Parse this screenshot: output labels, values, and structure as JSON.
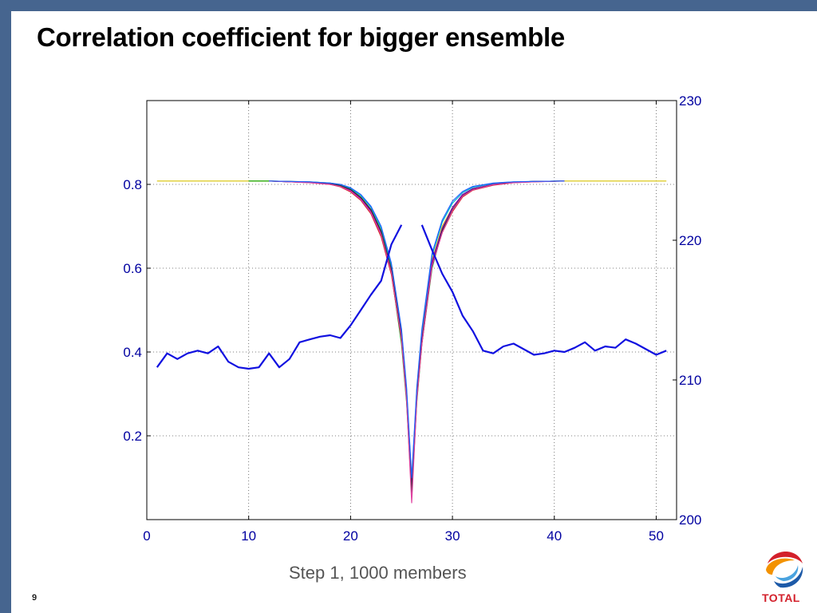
{
  "slide": {
    "title": "Correlation coefficient for bigger ensemble",
    "caption": "Step 1, 1000 members",
    "page_number": "9",
    "logo_text": "TOTAL",
    "frame_color": "#46658f"
  },
  "chart_data": {
    "type": "line",
    "title": "",
    "xlabel": "",
    "ylabel_left": "",
    "ylabel_right": "",
    "grid": true,
    "xlim": [
      0,
      52
    ],
    "xticks": [
      0,
      10,
      20,
      30,
      40,
      50
    ],
    "ylim_left": [
      0,
      1
    ],
    "yticks_left": [
      0.2,
      0.4,
      0.6,
      0.8
    ],
    "ylim_right": [
      200,
      230
    ],
    "yticks_right": [
      200,
      210,
      220,
      230
    ],
    "correlation_curves": {
      "axis": "left",
      "colors": [
        "#d8c400",
        "#00a000",
        "#d02020",
        "#00b8c8",
        "#8000c0",
        "#303030",
        "#e040a0",
        "#2060ff",
        "#808000",
        "#40a040"
      ],
      "series": [
        {
          "x": [
            1,
            5,
            10,
            12,
            14,
            16,
            18,
            19,
            20,
            21,
            22,
            23,
            24,
            25,
            25.5,
            26,
            26.5,
            27,
            28,
            29,
            30,
            31,
            32,
            34,
            36,
            38,
            41,
            51
          ],
          "values": [
            0.808,
            0.808,
            0.808,
            0.808,
            0.807,
            0.806,
            0.803,
            0.798,
            0.788,
            0.77,
            0.74,
            0.69,
            0.6,
            0.44,
            0.3,
            0.08,
            0.3,
            0.44,
            0.62,
            0.7,
            0.745,
            0.775,
            0.79,
            0.8,
            0.805,
            0.807,
            0.808,
            0.808
          ]
        },
        {
          "x": [
            10,
            12,
            14,
            16,
            18,
            19,
            20,
            21,
            22,
            23,
            24,
            25,
            25.5,
            26,
            26.5,
            27,
            28,
            29,
            30,
            31,
            32,
            34,
            36,
            38,
            41
          ],
          "values": [
            0.808,
            0.808,
            0.806,
            0.805,
            0.802,
            0.797,
            0.785,
            0.765,
            0.735,
            0.68,
            0.59,
            0.42,
            0.28,
            0.06,
            0.28,
            0.42,
            0.6,
            0.69,
            0.74,
            0.772,
            0.788,
            0.8,
            0.805,
            0.807,
            0.808
          ]
        },
        {
          "x": [
            12,
            14,
            16,
            18,
            19,
            20,
            21,
            22,
            23,
            24,
            25,
            25.5,
            26,
            26.5,
            27,
            28,
            29,
            30,
            31,
            32,
            34,
            36,
            38,
            41
          ],
          "values": [
            0.808,
            0.806,
            0.804,
            0.8,
            0.794,
            0.782,
            0.762,
            0.73,
            0.675,
            0.585,
            0.43,
            0.29,
            0.07,
            0.29,
            0.42,
            0.61,
            0.685,
            0.735,
            0.77,
            0.786,
            0.798,
            0.804,
            0.806,
            0.808
          ]
        },
        {
          "x": [
            12,
            14,
            16,
            18,
            19,
            20,
            21,
            22,
            23,
            24,
            25,
            25.5,
            26,
            26.5,
            27,
            28,
            29,
            30,
            31,
            32,
            34,
            36,
            38,
            41
          ],
          "values": [
            0.808,
            0.807,
            0.806,
            0.803,
            0.799,
            0.79,
            0.773,
            0.745,
            0.695,
            0.605,
            0.45,
            0.31,
            0.09,
            0.31,
            0.45,
            0.63,
            0.71,
            0.755,
            0.78,
            0.793,
            0.802,
            0.806,
            0.807,
            0.808
          ]
        },
        {
          "x": [
            12,
            14,
            16,
            18,
            19,
            20,
            21,
            22,
            23,
            24,
            25,
            25.5,
            26,
            26.5,
            27,
            28,
            29,
            30,
            31,
            32,
            34,
            36,
            38,
            41
          ],
          "values": [
            0.808,
            0.806,
            0.805,
            0.801,
            0.796,
            0.786,
            0.767,
            0.737,
            0.685,
            0.595,
            0.44,
            0.3,
            0.075,
            0.3,
            0.43,
            0.615,
            0.695,
            0.745,
            0.776,
            0.79,
            0.8,
            0.805,
            0.807,
            0.808
          ]
        },
        {
          "x": [
            12,
            14,
            16,
            18,
            19,
            20,
            21,
            22,
            23,
            24,
            25,
            25.5,
            26,
            26.5,
            27,
            28,
            29,
            30,
            31,
            32,
            34,
            36,
            38,
            41
          ],
          "values": [
            0.808,
            0.807,
            0.805,
            0.802,
            0.797,
            0.788,
            0.769,
            0.74,
            0.688,
            0.598,
            0.435,
            0.295,
            0.065,
            0.295,
            0.425,
            0.605,
            0.69,
            0.74,
            0.773,
            0.788,
            0.799,
            0.805,
            0.807,
            0.808
          ]
        },
        {
          "x": [
            12,
            14,
            16,
            18,
            19,
            20,
            21,
            22,
            23,
            24,
            25,
            25.5,
            26,
            26.5,
            27,
            28,
            29,
            30,
            31,
            32,
            34,
            36,
            38,
            41
          ],
          "values": [
            0.808,
            0.806,
            0.804,
            0.8,
            0.795,
            0.784,
            0.764,
            0.733,
            0.68,
            0.59,
            0.43,
            0.285,
            0.04,
            0.285,
            0.42,
            0.605,
            0.685,
            0.738,
            0.772,
            0.787,
            0.799,
            0.804,
            0.806,
            0.808
          ]
        },
        {
          "x": [
            12,
            14,
            16,
            18,
            19,
            20,
            21,
            22,
            23,
            24,
            25,
            25.5,
            26,
            26.5,
            27,
            28,
            29,
            30,
            31,
            32,
            34,
            36,
            38,
            41
          ],
          "values": [
            0.808,
            0.807,
            0.806,
            0.803,
            0.8,
            0.792,
            0.776,
            0.748,
            0.7,
            0.612,
            0.455,
            0.315,
            0.1,
            0.315,
            0.455,
            0.635,
            0.715,
            0.76,
            0.783,
            0.795,
            0.803,
            0.806,
            0.807,
            0.808
          ]
        }
      ]
    },
    "mean_curve": {
      "axis": "right",
      "color": "#1010e0",
      "segments": [
        {
          "x": [
            1,
            2,
            3,
            4,
            5,
            6,
            7,
            8,
            9,
            10,
            11,
            12,
            13,
            14,
            15,
            16,
            17,
            18,
            19,
            20,
            21,
            22,
            23,
            24,
            25
          ],
          "values": [
            210.9,
            211.9,
            211.5,
            211.9,
            212.1,
            211.9,
            212.4,
            211.3,
            210.9,
            210.8,
            210.9,
            211.9,
            210.9,
            211.5,
            212.7,
            212.9,
            213.1,
            213.2,
            213.0,
            213.9,
            215.0,
            216.1,
            217.1,
            219.7,
            221.1
          ]
        },
        {
          "x": [
            27,
            28,
            29,
            30,
            31,
            32,
            33,
            34,
            35,
            36,
            37,
            38,
            39,
            40,
            41,
            42,
            43,
            44,
            45,
            46,
            47,
            48,
            49,
            50,
            51
          ],
          "values": [
            221.1,
            219.3,
            217.6,
            216.3,
            214.6,
            213.5,
            212.1,
            211.9,
            212.4,
            212.6,
            212.2,
            211.8,
            211.9,
            212.1,
            212.0,
            212.3,
            212.7,
            212.1,
            212.4,
            212.3,
            212.9,
            212.6,
            212.2,
            211.8,
            212.1
          ]
        }
      ]
    }
  }
}
